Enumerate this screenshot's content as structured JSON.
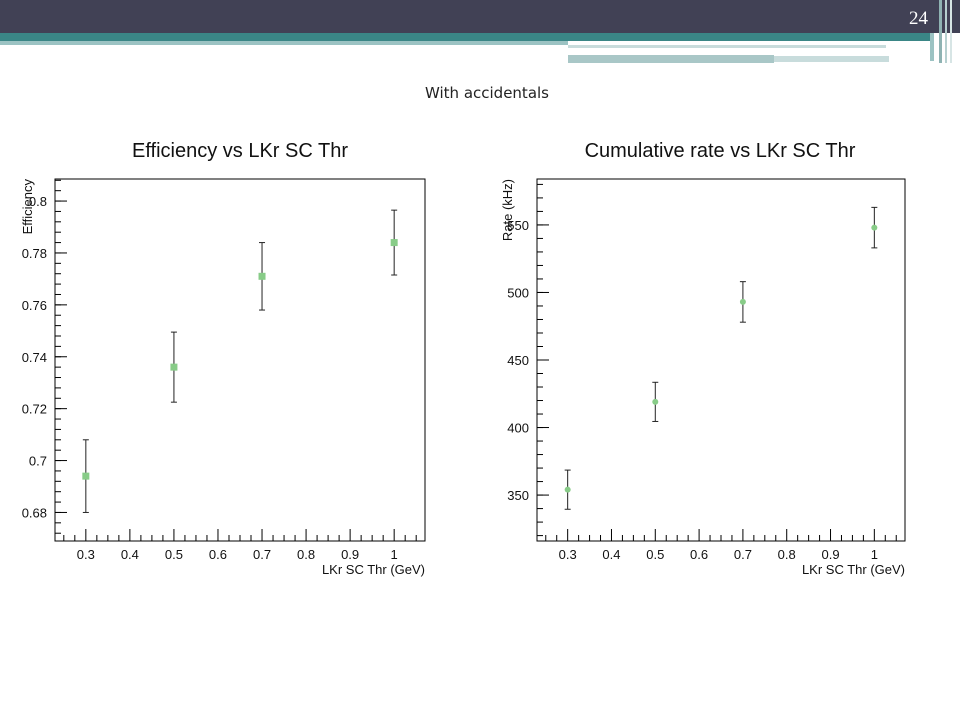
{
  "slide": {
    "number": "24",
    "subtitle": "With accidentals"
  },
  "colors": {
    "header": "#414155",
    "accent": "#3a8686",
    "marker": "#88cc88"
  },
  "chart_data": [
    {
      "type": "scatter",
      "title": "Efficiency vs LKr SC Thr",
      "xlabel": "LKr SC Thr (GeV)",
      "ylabel": "Efficiency",
      "xlim": [
        0.23,
        1.07
      ],
      "ylim": [
        0.669,
        0.8085
      ],
      "xticks": [
        0.3,
        0.4,
        0.5,
        0.6,
        0.7,
        0.8,
        0.9,
        1
      ],
      "xtick_labels": [
        "0.3",
        "0.4",
        "0.5",
        "0.6",
        "0.7",
        "0.8",
        "0.9",
        "1"
      ],
      "yticks": [
        0.68,
        0.7,
        0.72,
        0.74,
        0.76,
        0.78,
        0.8
      ],
      "ytick_labels": [
        "0.68",
        "0.7",
        "0.72",
        "0.74",
        "0.76",
        "0.78",
        "0.8"
      ],
      "legend": "none",
      "grid": false,
      "x": [
        0.3,
        0.5,
        0.7,
        1.0
      ],
      "y": [
        0.694,
        0.736,
        0.771,
        0.784
      ],
      "yerr": [
        0.014,
        0.0135,
        0.013,
        0.0125
      ]
    },
    {
      "type": "scatter",
      "title": "Cumulative rate vs LKr SC Thr",
      "xlabel": "LKr SC Thr (GeV)",
      "ylabel": "Rate (kHz)",
      "xlim": [
        0.23,
        1.07
      ],
      "ylim": [
        316,
        584
      ],
      "xticks": [
        0.3,
        0.4,
        0.5,
        0.6,
        0.7,
        0.8,
        0.9,
        1
      ],
      "xtick_labels": [
        "0.3",
        "0.4",
        "0.5",
        "0.6",
        "0.7",
        "0.8",
        "0.9",
        "1"
      ],
      "yticks": [
        350,
        400,
        450,
        500,
        550
      ],
      "ytick_labels": [
        "350",
        "400",
        "450",
        "500",
        "550"
      ],
      "legend": "none",
      "grid": false,
      "x": [
        0.3,
        0.5,
        0.7,
        1.0
      ],
      "y": [
        354,
        419,
        493,
        548
      ],
      "yerr": [
        14.5,
        14.5,
        15,
        15
      ]
    }
  ]
}
